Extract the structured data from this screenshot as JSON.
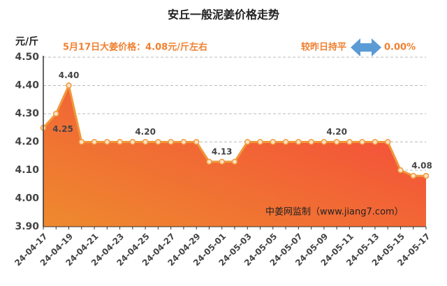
{
  "chart_data": {
    "type": "area",
    "title": "安丘一般泥姜价格走势",
    "y_label": "元/斤",
    "subtitle": "5月17日大姜价格：4.08元/斤左右",
    "change_text": "较昨日持平",
    "change_value": "0.00%",
    "watermark": "中姜网监制（www.jiang7.com）",
    "categories": [
      "24-04-17",
      null,
      "24-04-19",
      null,
      "24-04-21",
      null,
      "24-04-23",
      null,
      "24-04-25",
      null,
      "24-04-27",
      null,
      "24-04-29",
      null,
      "24-05-01",
      null,
      "24-05-03",
      null,
      "24-05-05",
      null,
      "24-05-07",
      null,
      "24-05-09",
      null,
      "24-05-11",
      null,
      "24-05-13",
      null,
      "24-05-15",
      null,
      "24-05-17"
    ],
    "values": [
      4.25,
      4.3,
      4.4,
      4.2,
      4.2,
      4.2,
      4.2,
      4.2,
      4.2,
      4.2,
      4.2,
      4.2,
      4.2,
      4.13,
      4.13,
      4.13,
      4.2,
      4.2,
      4.2,
      4.2,
      4.2,
      4.2,
      4.2,
      4.2,
      4.2,
      4.2,
      4.2,
      4.2,
      4.1,
      4.08,
      4.08
    ],
    "value_labels": [
      "4.25",
      null,
      "4.40",
      null,
      null,
      null,
      null,
      null,
      "4.20",
      null,
      null,
      null,
      null,
      null,
      "4.13",
      null,
      null,
      null,
      null,
      null,
      null,
      null,
      null,
      "4.20",
      null,
      null,
      null,
      null,
      null,
      null,
      "4.08"
    ],
    "color": "#f0983a",
    "ylim": [
      3.9,
      4.5
    ],
    "yticks": [
      {
        "value": 3.9,
        "label": "3.90"
      },
      {
        "value": 4.0,
        "label": "4.00"
      },
      {
        "value": 4.1,
        "label": "4.10"
      },
      {
        "value": 4.2,
        "label": "4.20"
      },
      {
        "value": 4.3,
        "label": "4.30"
      },
      {
        "value": 4.4,
        "label": "4.40"
      },
      {
        "value": 4.5,
        "label": "4.50"
      }
    ],
    "grid": true
  }
}
